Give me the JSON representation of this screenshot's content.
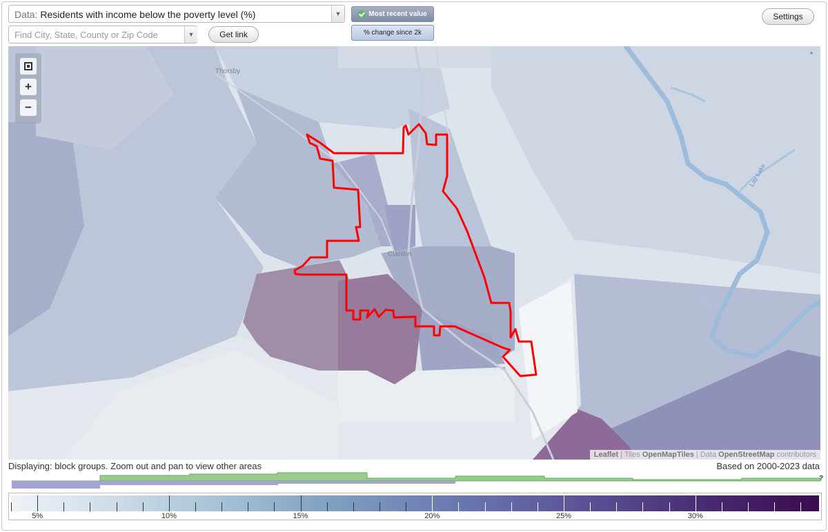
{
  "data_select": {
    "label": "Data:",
    "value": "Residents with income below the poverty level (%)"
  },
  "search": {
    "placeholder": "Find City, State, County or Zip Code"
  },
  "buttons": {
    "get_link": "Get link",
    "settings": "Settings"
  },
  "toggles": {
    "most_recent": "Most recent value",
    "change": "% change since 2k"
  },
  "map": {
    "places": [
      "Thorsby",
      "Clanton",
      "Lay Lake"
    ],
    "attribution": {
      "leaflet": "Leaflet",
      "tiles_prefix": "Tiles",
      "tiles": "OpenMapTiles",
      "data_prefix": "Data",
      "osm": "OpenStreetMap",
      "contributors": "contributors",
      "sep": "|"
    }
  },
  "status": {
    "displaying": "Displaying: block groups. Zoom out and pan to view other areas",
    "based_on": "Based on 2000-2023 data"
  },
  "histogram": {
    "help": "?"
  },
  "legend": {
    "labels": [
      "5%",
      "10%",
      "15%",
      "20%",
      "25%",
      "30%"
    ],
    "scale_min": 4,
    "scale_max": 34.7,
    "major_ticks": [
      5,
      10,
      15,
      20,
      25,
      30
    ],
    "minor_step": 1
  },
  "colors": {
    "highlight_outline": "#ff0000",
    "histogram_green": "#98cc8e",
    "histogram_purple": "#a5a3d2"
  }
}
